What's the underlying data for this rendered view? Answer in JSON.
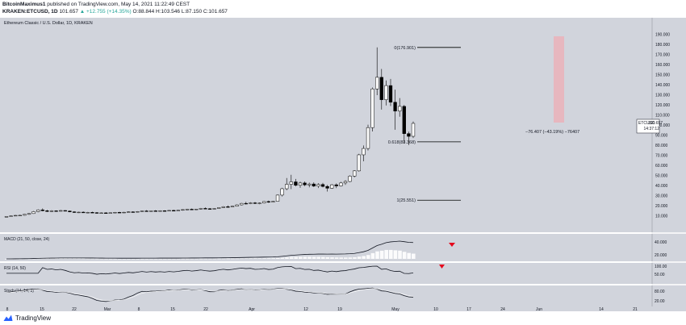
{
  "header": {
    "line1_user": "BitcoinMaximus1",
    "line1_rest": "published on TradingView.com, May 14, 2021 11:22:49 CEST",
    "line2_symbol": "KRAKEN:ETCUSD, 1D",
    "line2_price": "101.657",
    "line2_change": "▲ +12.755 (+14.35%)",
    "line2_ohlc": "O:88.844  H:103.546  L:87.150  C:101.657"
  },
  "chart_title": "Ethereum Classic / U.S. Dollar, 1D, KRAKEN",
  "price_tag": {
    "label": "ETCUSD",
    "value": "101.657",
    "time": "14:37:12"
  },
  "measure_label": "−76.407 (−43.19%) −76407",
  "fib_labels": [
    "0(176.901)",
    "0.618(83.368)",
    "1(25.551)"
  ],
  "indicators": {
    "macd_label": "MACD (21, 50, close, 24)",
    "rsi_label": "RSI (14, 50)",
    "stoch_label": "Stoch (14, 14, 3)"
  },
  "footer": {
    "brand": "TradingView"
  },
  "colors": {
    "pane_bg": "#d1d4dc",
    "candle_up": "#ffffff",
    "candle_down": "#000000",
    "fib_line": "#000000",
    "measure_box": "#e7b7bf",
    "arrow": "#e5081d"
  },
  "chart_data": {
    "type": "candlestick",
    "title": "Ethereum Classic / U.S. Dollar, 1D, KRAKEN",
    "ylabel": "USD",
    "ylim": [
      0,
      200
    ],
    "y_ticks": [
      10,
      20,
      30,
      40,
      50,
      60,
      70,
      80,
      90,
      100,
      110,
      120,
      130,
      140,
      150,
      160,
      170,
      180,
      190
    ],
    "x_ticks": [
      "8",
      "15",
      "22",
      "Mar",
      "8",
      "15",
      "22",
      "Apr",
      "12",
      "19",
      "May",
      "10",
      "17",
      "24",
      "Jun",
      "14",
      "21"
    ],
    "fib_levels": [
      {
        "ratio": 0,
        "price": 176.901
      },
      {
        "ratio": 0.618,
        "price": 83.368
      },
      {
        "ratio": 1,
        "price": 25.551
      }
    ],
    "current_price": 101.657,
    "drop_measure": {
      "from": 176.901,
      "to": 100.494,
      "change": -76.407,
      "percent": -43.19
    },
    "candles": [
      [
        9.3,
        9.6,
        9.0,
        9.4
      ],
      [
        9.4,
        10.2,
        9.2,
        10.0
      ],
      [
        10.0,
        10.8,
        9.8,
        10.5
      ],
      [
        10.5,
        11.0,
        10.0,
        10.6
      ],
      [
        10.6,
        11.8,
        10.2,
        11.5
      ],
      [
        11.5,
        12.6,
        11.0,
        12.3
      ],
      [
        12.3,
        14.8,
        12.0,
        14.2
      ],
      [
        14.2,
        16.5,
        13.6,
        15.9
      ],
      [
        15.9,
        17.4,
        14.5,
        15.1
      ],
      [
        15.1,
        15.9,
        13.8,
        14.4
      ],
      [
        14.4,
        15.6,
        13.9,
        15.0
      ],
      [
        15.0,
        15.4,
        14.2,
        14.6
      ],
      [
        14.6,
        15.8,
        14.3,
        15.3
      ],
      [
        15.3,
        15.7,
        14.4,
        14.8
      ],
      [
        14.8,
        15.2,
        13.6,
        14.0
      ],
      [
        14.0,
        14.6,
        12.9,
        13.4
      ],
      [
        13.4,
        14.0,
        12.8,
        13.7
      ],
      [
        13.7,
        14.3,
        13.0,
        13.3
      ],
      [
        13.3,
        13.9,
        12.6,
        13.5
      ],
      [
        13.5,
        14.1,
        12.9,
        13.2
      ],
      [
        13.2,
        13.7,
        12.2,
        12.6
      ],
      [
        12.6,
        13.4,
        12.2,
        13.0
      ],
      [
        13.0,
        13.6,
        12.5,
        12.8
      ],
      [
        12.8,
        13.3,
        12.3,
        13.1
      ],
      [
        13.1,
        13.8,
        12.8,
        13.5
      ],
      [
        13.5,
        14.0,
        12.9,
        13.2
      ],
      [
        13.2,
        13.9,
        12.8,
        13.6
      ],
      [
        13.6,
        14.4,
        13.2,
        14.0
      ],
      [
        14.0,
        14.5,
        13.4,
        13.8
      ],
      [
        13.8,
        14.6,
        13.5,
        14.3
      ],
      [
        14.3,
        15.2,
        14.0,
        14.9
      ],
      [
        14.9,
        15.6,
        14.2,
        14.6
      ],
      [
        14.6,
        15.3,
        14.3,
        15.0
      ],
      [
        15.0,
        15.6,
        14.5,
        14.8
      ],
      [
        14.8,
        15.4,
        14.4,
        15.1
      ],
      [
        15.1,
        15.5,
        14.6,
        14.9
      ],
      [
        14.9,
        15.7,
        14.6,
        15.4
      ],
      [
        15.4,
        16.0,
        14.8,
        15.2
      ],
      [
        15.2,
        15.9,
        14.9,
        15.6
      ],
      [
        15.6,
        16.5,
        15.1,
        16.2
      ],
      [
        16.2,
        17.0,
        15.6,
        16.6
      ],
      [
        16.6,
        17.2,
        15.9,
        16.3
      ],
      [
        16.3,
        16.9,
        15.8,
        16.7
      ],
      [
        16.7,
        17.8,
        16.3,
        17.4
      ],
      [
        17.4,
        18.3,
        16.8,
        17.1
      ],
      [
        17.1,
        17.7,
        16.4,
        16.9
      ],
      [
        16.9,
        17.6,
        16.5,
        17.3
      ],
      [
        17.3,
        18.5,
        17.0,
        18.2
      ],
      [
        18.2,
        19.6,
        17.8,
        19.1
      ],
      [
        19.1,
        20.3,
        18.2,
        18.8
      ],
      [
        18.8,
        19.9,
        18.4,
        19.6
      ],
      [
        19.6,
        21.4,
        19.2,
        20.9
      ],
      [
        20.9,
        22.8,
        20.3,
        22.4
      ],
      [
        22.4,
        23.9,
        21.3,
        22.1
      ],
      [
        22.1,
        23.5,
        21.6,
        22.9
      ],
      [
        22.9,
        23.7,
        21.7,
        22.3
      ],
      [
        22.3,
        23.2,
        21.5,
        22.7
      ],
      [
        22.7,
        24.6,
        22.3,
        24.2
      ],
      [
        24.2,
        25.1,
        22.9,
        23.6
      ],
      [
        23.6,
        24.8,
        23.2,
        24.4
      ],
      [
        24.4,
        31.2,
        24.1,
        30.6
      ],
      [
        30.6,
        37.8,
        29.2,
        36.9
      ],
      [
        36.9,
        47.5,
        35.4,
        41.3
      ],
      [
        41.3,
        50.7,
        36.5,
        43.7
      ],
      [
        43.7,
        46.6,
        39.2,
        40.3
      ],
      [
        40.3,
        43.9,
        37.8,
        42.6
      ],
      [
        42.6,
        44.1,
        39.4,
        40.7
      ],
      [
        40.7,
        42.9,
        38.3,
        41.6
      ],
      [
        41.6,
        43.2,
        38.6,
        39.5
      ],
      [
        39.5,
        42.3,
        37.6,
        41.1
      ],
      [
        41.1,
        42.7,
        38.2,
        39.2
      ],
      [
        39.2,
        40.6,
        34.1,
        37.4
      ],
      [
        37.4,
        41.5,
        36.8,
        40.8
      ],
      [
        40.8,
        42.2,
        37.5,
        39.7
      ],
      [
        39.7,
        43.7,
        39.1,
        42.6
      ],
      [
        42.6,
        45.3,
        40.7,
        44.1
      ],
      [
        44.1,
        50.2,
        43.4,
        49.4
      ],
      [
        49.4,
        55.3,
        48.2,
        54.6
      ],
      [
        54.6,
        71.5,
        53.9,
        70.5
      ],
      [
        70.5,
        79.8,
        64.1,
        76.8
      ],
      [
        76.8,
        100.3,
        74.8,
        97.5
      ],
      [
        97.5,
        137.2,
        93.6,
        135.8
      ],
      [
        135.8,
        176.9,
        129.6,
        147.3
      ],
      [
        147.3,
        155.6,
        115.3,
        125.1
      ],
      [
        125.1,
        144.2,
        119.4,
        139.1
      ],
      [
        139.1,
        145.7,
        118.8,
        122.6
      ],
      [
        122.6,
        135.1,
        95.3,
        113.8
      ],
      [
        113.8,
        126.7,
        108.2,
        118.5
      ],
      [
        118.5,
        119.9,
        82.1,
        91.5
      ],
      [
        91.5,
        93.4,
        80.2,
        88.8
      ],
      [
        88.844,
        103.546,
        87.15,
        101.657
      ]
    ]
  }
}
